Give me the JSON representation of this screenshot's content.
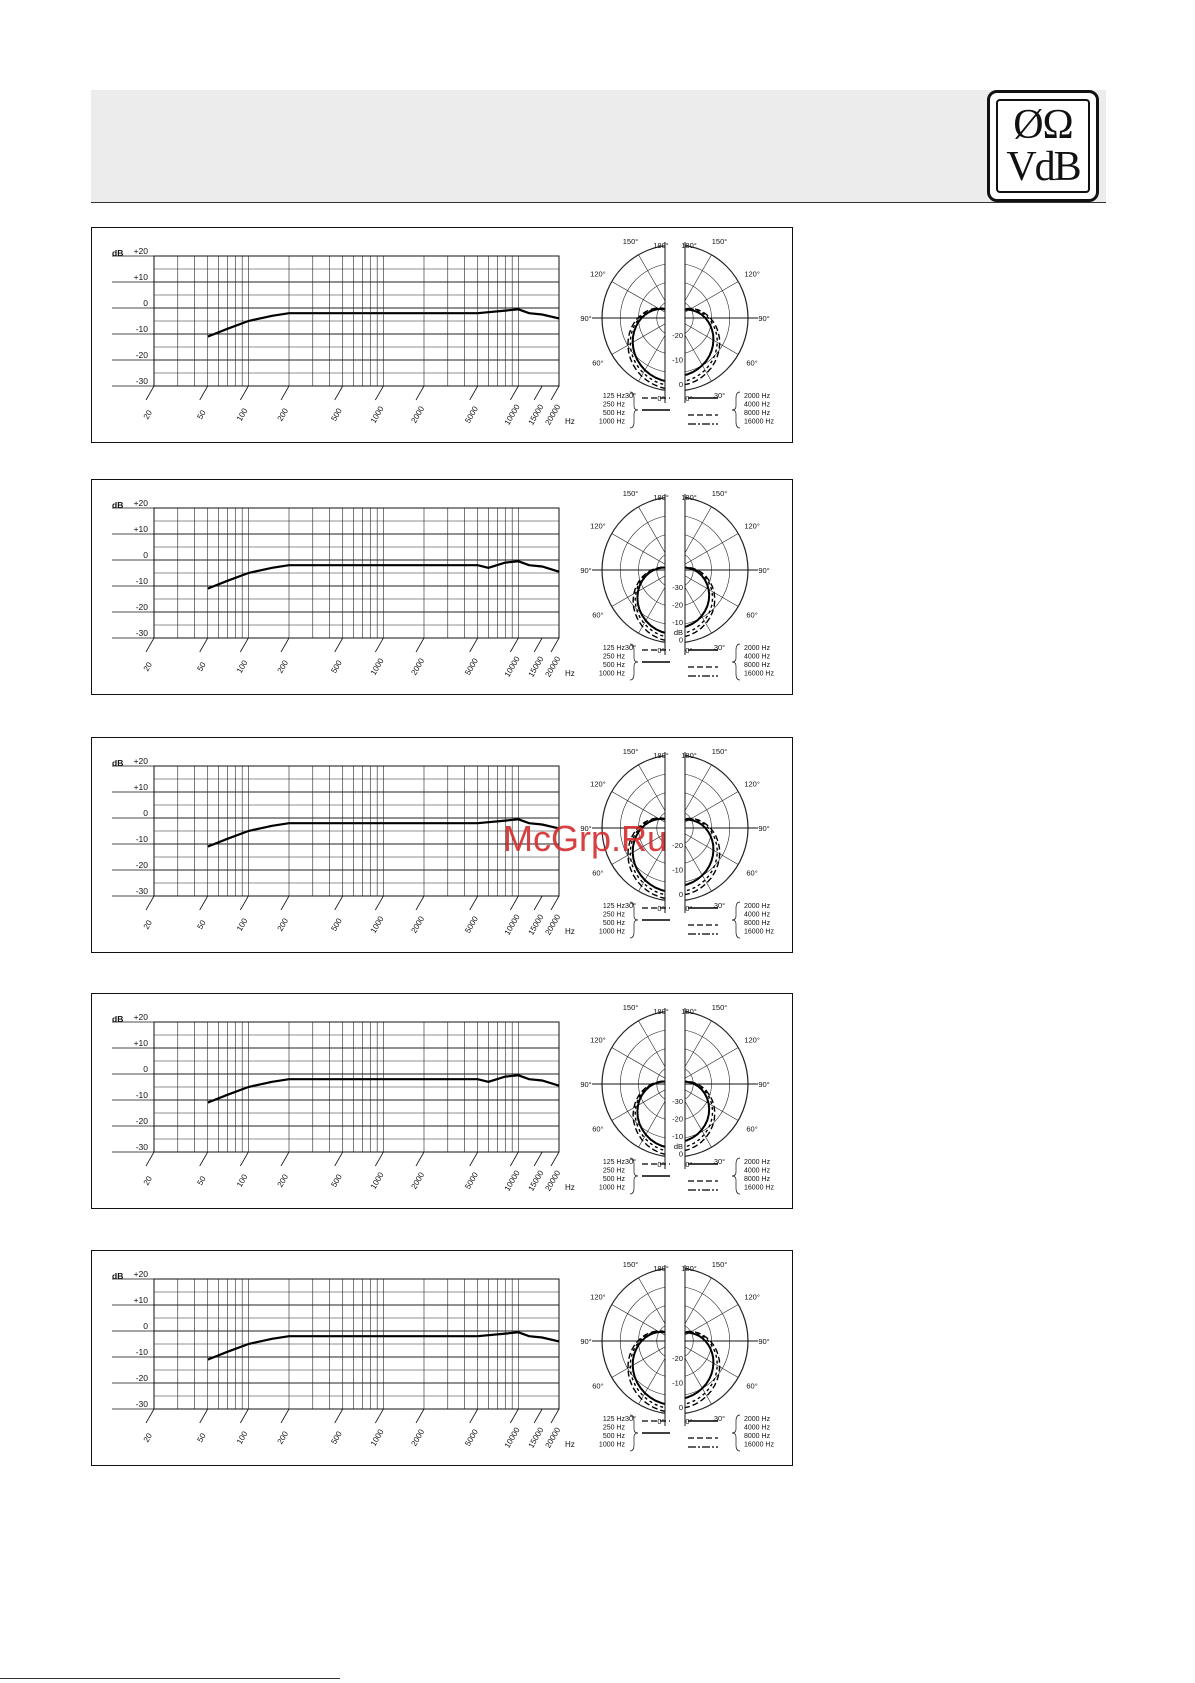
{
  "logo": {
    "top": "ØΩ",
    "bottom": "VdB"
  },
  "watermark": "McGrp.Ru",
  "footer": "",
  "chart_data": [
    {
      "type": "line",
      "ylabel": "dB",
      "xlabel": "Hz",
      "xscale": "log",
      "xlim": [
        20,
        20000
      ],
      "ylim": [
        -30,
        20
      ],
      "x_ticks": [
        20,
        50,
        100,
        200,
        500,
        1000,
        2000,
        5000,
        10000,
        15000,
        20000
      ],
      "y_ticks": [
        "+20",
        "+10",
        "0",
        "-10",
        "-20",
        "-30"
      ],
      "series": [
        {
          "x": [
            50,
            70,
            100,
            150,
            200,
            1000,
            5000,
            8000,
            10000,
            12000,
            15000,
            20000
          ],
          "y": [
            -11,
            -8,
            -5,
            -3,
            -2,
            -2,
            -2,
            -1,
            -0.5,
            -2,
            -2.5,
            -4
          ]
        }
      ],
      "polar": {
        "angle_labels": [
          "180°",
          "150°",
          "120°",
          "90°",
          "60°",
          "30°",
          "0°"
        ],
        "radial_labels": [
          "-20",
          "-10",
          "0"
        ],
        "show_db_label": false,
        "legend_left": [
          "125 Hz",
          "250 Hz",
          "500 Hz",
          "1000 Hz"
        ],
        "legend_right": [
          "2000 Hz",
          "4000 Hz",
          "8000 Hz",
          "16000 Hz"
        ],
        "pattern": "cardioid"
      }
    },
    {
      "type": "line",
      "ylabel": "dB",
      "xlabel": "Hz",
      "xscale": "log",
      "xlim": [
        20,
        20000
      ],
      "ylim": [
        -30,
        20
      ],
      "x_ticks": [
        20,
        50,
        100,
        200,
        500,
        1000,
        2000,
        5000,
        10000,
        15000,
        20000
      ],
      "y_ticks": [
        "+20",
        "+10",
        "0",
        "-10",
        "-20",
        "-30"
      ],
      "series": [
        {
          "x": [
            50,
            70,
            100,
            150,
            200,
            1000,
            5000,
            6000,
            8000,
            10000,
            12000,
            15000,
            20000
          ],
          "y": [
            -11,
            -8,
            -5,
            -3,
            -2,
            -2,
            -2,
            -3,
            -1,
            -0.5,
            -2,
            -2.5,
            -4.5
          ]
        }
      ],
      "polar": {
        "angle_labels": [
          "180°",
          "150°",
          "120°",
          "90°",
          "60°",
          "30°",
          "0°"
        ],
        "radial_labels": [
          "-30",
          "-20",
          "-10",
          "0"
        ],
        "show_db_label": true,
        "legend_left": [
          "125 Hz",
          "250 Hz",
          "500 Hz",
          "1000 Hz"
        ],
        "legend_right": [
          "2000 Hz",
          "4000 Hz",
          "8000 Hz",
          "16000 Hz"
        ],
        "pattern": "hypercardioid"
      }
    },
    {
      "type": "line",
      "ylabel": "dB",
      "xlabel": "Hz",
      "xscale": "log",
      "xlim": [
        20,
        20000
      ],
      "ylim": [
        -30,
        20
      ],
      "x_ticks": [
        20,
        50,
        100,
        200,
        500,
        1000,
        2000,
        5000,
        10000,
        15000,
        20000
      ],
      "y_ticks": [
        "+20",
        "+10",
        "0",
        "-10",
        "-20",
        "-30"
      ],
      "series": [
        {
          "x": [
            50,
            70,
            100,
            150,
            200,
            1000,
            5000,
            8000,
            10000,
            12000,
            15000,
            20000
          ],
          "y": [
            -11,
            -8,
            -5,
            -3,
            -2,
            -2,
            -2,
            -1,
            -0.5,
            -2,
            -2.5,
            -4
          ]
        }
      ],
      "polar": {
        "angle_labels": [
          "180°",
          "150°",
          "120°",
          "90°",
          "60°",
          "30°",
          "0°"
        ],
        "radial_labels": [
          "-20",
          "-10",
          "0"
        ],
        "show_db_label": false,
        "legend_left": [
          "125 Hz",
          "250 Hz",
          "500 Hz",
          "1000 Hz"
        ],
        "legend_right": [
          "2000 Hz",
          "4000 Hz",
          "8000 Hz",
          "16000 Hz"
        ],
        "pattern": "cardioid"
      }
    },
    {
      "type": "line",
      "ylabel": "dB",
      "xlabel": "Hz",
      "xscale": "log",
      "xlim": [
        20,
        20000
      ],
      "ylim": [
        -30,
        20
      ],
      "x_ticks": [
        20,
        50,
        100,
        200,
        500,
        1000,
        2000,
        5000,
        10000,
        15000,
        20000
      ],
      "y_ticks": [
        "+20",
        "+10",
        "0",
        "-10",
        "-20",
        "-30"
      ],
      "series": [
        {
          "x": [
            50,
            70,
            100,
            150,
            200,
            1000,
            5000,
            6000,
            8000,
            10000,
            12000,
            15000,
            20000
          ],
          "y": [
            -11,
            -8,
            -5,
            -3,
            -2,
            -2,
            -2,
            -3,
            -1,
            -0.5,
            -2,
            -2.5,
            -4.5
          ]
        }
      ],
      "polar": {
        "angle_labels": [
          "180°",
          "150°",
          "120°",
          "90°",
          "60°",
          "30°",
          "0°"
        ],
        "radial_labels": [
          "-30",
          "-20",
          "-10",
          "0"
        ],
        "show_db_label": true,
        "legend_left": [
          "125 Hz",
          "250 Hz",
          "500 Hz",
          "1000 Hz"
        ],
        "legend_right": [
          "2000 Hz",
          "4000 Hz",
          "8000 Hz",
          "16000 Hz"
        ],
        "pattern": "hypercardioid"
      }
    },
    {
      "type": "line",
      "ylabel": "dB",
      "xlabel": "Hz",
      "xscale": "log",
      "xlim": [
        20,
        20000
      ],
      "ylim": [
        -30,
        20
      ],
      "x_ticks": [
        20,
        50,
        100,
        200,
        500,
        1000,
        2000,
        5000,
        10000,
        15000,
        20000
      ],
      "y_ticks": [
        "+20",
        "+10",
        "0",
        "-10",
        "-20",
        "-30"
      ],
      "series": [
        {
          "x": [
            50,
            70,
            100,
            150,
            200,
            1000,
            5000,
            8000,
            10000,
            12000,
            15000,
            20000
          ],
          "y": [
            -11,
            -8,
            -5,
            -3,
            -2,
            -2,
            -2,
            -1,
            -0.5,
            -2,
            -2.5,
            -4
          ]
        }
      ],
      "polar": {
        "angle_labels": [
          "180°",
          "150°",
          "120°",
          "90°",
          "60°",
          "30°",
          "0°"
        ],
        "radial_labels": [
          "-20",
          "-10",
          "0"
        ],
        "show_db_label": false,
        "legend_left": [
          "125 Hz",
          "250 Hz",
          "500 Hz",
          "1000 Hz"
        ],
        "legend_right": [
          "2000 Hz",
          "4000 Hz",
          "8000 Hz",
          "16000 Hz"
        ],
        "pattern": "cardioid"
      }
    }
  ]
}
